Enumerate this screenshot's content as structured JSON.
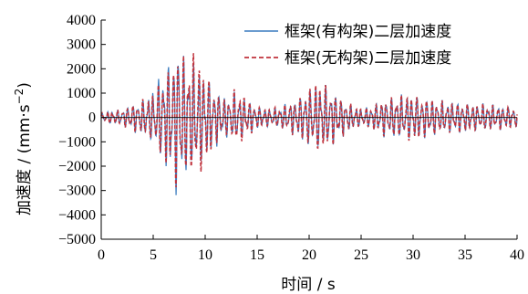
{
  "chart_data": {
    "type": "line",
    "title": "",
    "xlabel": "时间 / s",
    "ylabel_main": "加速度 / (mm·s",
    "ylabel_sup": "−2",
    "ylabel_close": ")",
    "xlim": [
      0,
      40
    ],
    "ylim": [
      -5000,
      4000
    ],
    "xticks": [
      0,
      5,
      10,
      15,
      20,
      25,
      30,
      35,
      40
    ],
    "xtick_labels": [
      "0",
      "5",
      "10",
      "15",
      "20",
      "25",
      "30",
      "35",
      "40"
    ],
    "yticks": [
      4000,
      3000,
      2000,
      1000,
      0,
      -1000,
      -2000,
      -3000,
      -4000,
      -5000
    ],
    "ytick_labels": [
      "4000",
      "3000",
      "2000",
      "1000",
      "0",
      "−1000",
      "−2000",
      "−3000",
      "−4000",
      "−5000"
    ],
    "grid": false,
    "legend_position": "top-right",
    "series": [
      {
        "name": "框架(有构架)二层加速度",
        "color": "#3a7bbf",
        "style": "solid",
        "envelope": [
          [
            0,
            200
          ],
          [
            1,
            300
          ],
          [
            2,
            350
          ],
          [
            3,
            600
          ],
          [
            4,
            800
          ],
          [
            5,
            1200
          ],
          [
            6,
            2200
          ],
          [
            7,
            2800
          ],
          [
            7.4,
            3600
          ],
          [
            8,
            2700
          ],
          [
            9,
            2300
          ],
          [
            10,
            2000
          ],
          [
            11,
            1300
          ],
          [
            12,
            900
          ],
          [
            13,
            1100
          ],
          [
            14,
            800
          ],
          [
            15,
            500
          ],
          [
            16,
            400
          ],
          [
            17,
            450
          ],
          [
            18,
            650
          ],
          [
            19,
            900
          ],
          [
            20,
            1300
          ],
          [
            21,
            1500
          ],
          [
            22,
            1300
          ],
          [
            23,
            900
          ],
          [
            24,
            600
          ],
          [
            25,
            400
          ],
          [
            26,
            500
          ],
          [
            27,
            800
          ],
          [
            28,
            900
          ],
          [
            29,
            1000
          ],
          [
            30,
            1000
          ],
          [
            31,
            900
          ],
          [
            32,
            800
          ],
          [
            33,
            700
          ],
          [
            34,
            700
          ],
          [
            35,
            650
          ],
          [
            36,
            600
          ],
          [
            37,
            600
          ],
          [
            38,
            550
          ],
          [
            39,
            500
          ],
          [
            40,
            450
          ]
        ]
      },
      {
        "name": "框架(无构架)二层加速度",
        "color": "#c0333d",
        "style": "dashed",
        "envelope": [
          [
            0,
            200
          ],
          [
            1,
            300
          ],
          [
            2,
            350
          ],
          [
            3,
            600
          ],
          [
            4,
            800
          ],
          [
            5,
            1100
          ],
          [
            6,
            2000
          ],
          [
            7,
            2700
          ],
          [
            7.4,
            3400
          ],
          [
            8,
            2600
          ],
          [
            9,
            2900
          ],
          [
            10,
            2200
          ],
          [
            11,
            1200
          ],
          [
            12,
            800
          ],
          [
            13,
            1300
          ],
          [
            14,
            900
          ],
          [
            15,
            500
          ],
          [
            16,
            400
          ],
          [
            17,
            450
          ],
          [
            18,
            650
          ],
          [
            19,
            900
          ],
          [
            20,
            1300
          ],
          [
            21,
            1700
          ],
          [
            22,
            1300
          ],
          [
            23,
            900
          ],
          [
            24,
            600
          ],
          [
            25,
            400
          ],
          [
            26,
            500
          ],
          [
            27,
            800
          ],
          [
            28,
            900
          ],
          [
            29,
            1000
          ],
          [
            30,
            1100
          ],
          [
            31,
            900
          ],
          [
            32,
            800
          ],
          [
            33,
            700
          ],
          [
            34,
            700
          ],
          [
            35,
            650
          ],
          [
            36,
            600
          ],
          [
            37,
            600
          ],
          [
            38,
            550
          ],
          [
            39,
            500
          ],
          [
            40,
            450
          ]
        ]
      }
    ]
  }
}
